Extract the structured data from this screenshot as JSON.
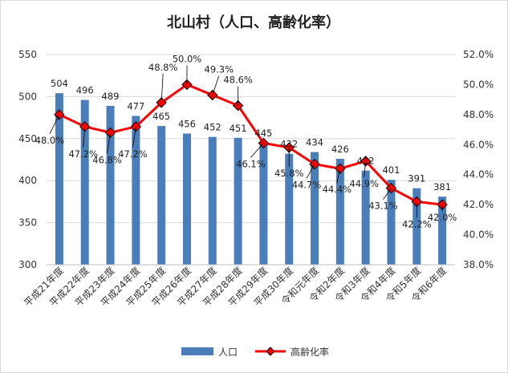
{
  "chart_data": {
    "type": "bar",
    "title": "北山村（人口、高齢化率）",
    "categories": [
      "平成21年度",
      "平成22年度",
      "平成23年度",
      "平成24年度",
      "平成25年度",
      "平成26年度",
      "平成27年度",
      "平成28年度",
      "平成29年度",
      "平成30年度",
      "令和元年度",
      "令和2年度",
      "令和3年度",
      "令和4年度",
      "令和5年度",
      "令和6年度"
    ],
    "series": [
      {
        "name": "人口",
        "type": "bar",
        "axis": "left",
        "color": "#4a7ebb",
        "values": [
          504,
          496,
          489,
          477,
          465,
          456,
          452,
          451,
          445,
          432,
          434,
          426,
          412,
          401,
          391,
          381
        ]
      },
      {
        "name": "高齢化率",
        "type": "line",
        "axis": "right",
        "color": "#ff0000",
        "marker": "diamond",
        "values": [
          48.0,
          47.2,
          46.8,
          47.2,
          48.8,
          50.0,
          49.3,
          48.6,
          46.1,
          45.8,
          44.7,
          44.4,
          44.9,
          43.1,
          42.2,
          42.0
        ],
        "labels": [
          "48.0%",
          "47.2%",
          "46.8%",
          "47.2%",
          "48.8%",
          "50.0%",
          "49.3%",
          "48.6%",
          "46.1%",
          "45.8%",
          "44.7%",
          "44.4%",
          "44.9%",
          "43.1%",
          "42.2%",
          "42.0%"
        ]
      }
    ],
    "y_left": {
      "ylim": [
        300,
        550
      ],
      "ticks": [
        300,
        350,
        400,
        450,
        500,
        550
      ],
      "tick_labels": [
        "300",
        "350",
        "400",
        "450",
        "500",
        "550"
      ]
    },
    "y_right": {
      "ylim": [
        38.0,
        52.0
      ],
      "ticks": [
        38,
        40,
        42,
        44,
        46,
        48,
        50,
        52
      ],
      "tick_labels": [
        "38.0%",
        "40.0%",
        "42.0%",
        "44.0%",
        "46.0%",
        "48.0%",
        "50.0%",
        "52.0%"
      ]
    },
    "grid": true,
    "legend_position": "bottom"
  }
}
